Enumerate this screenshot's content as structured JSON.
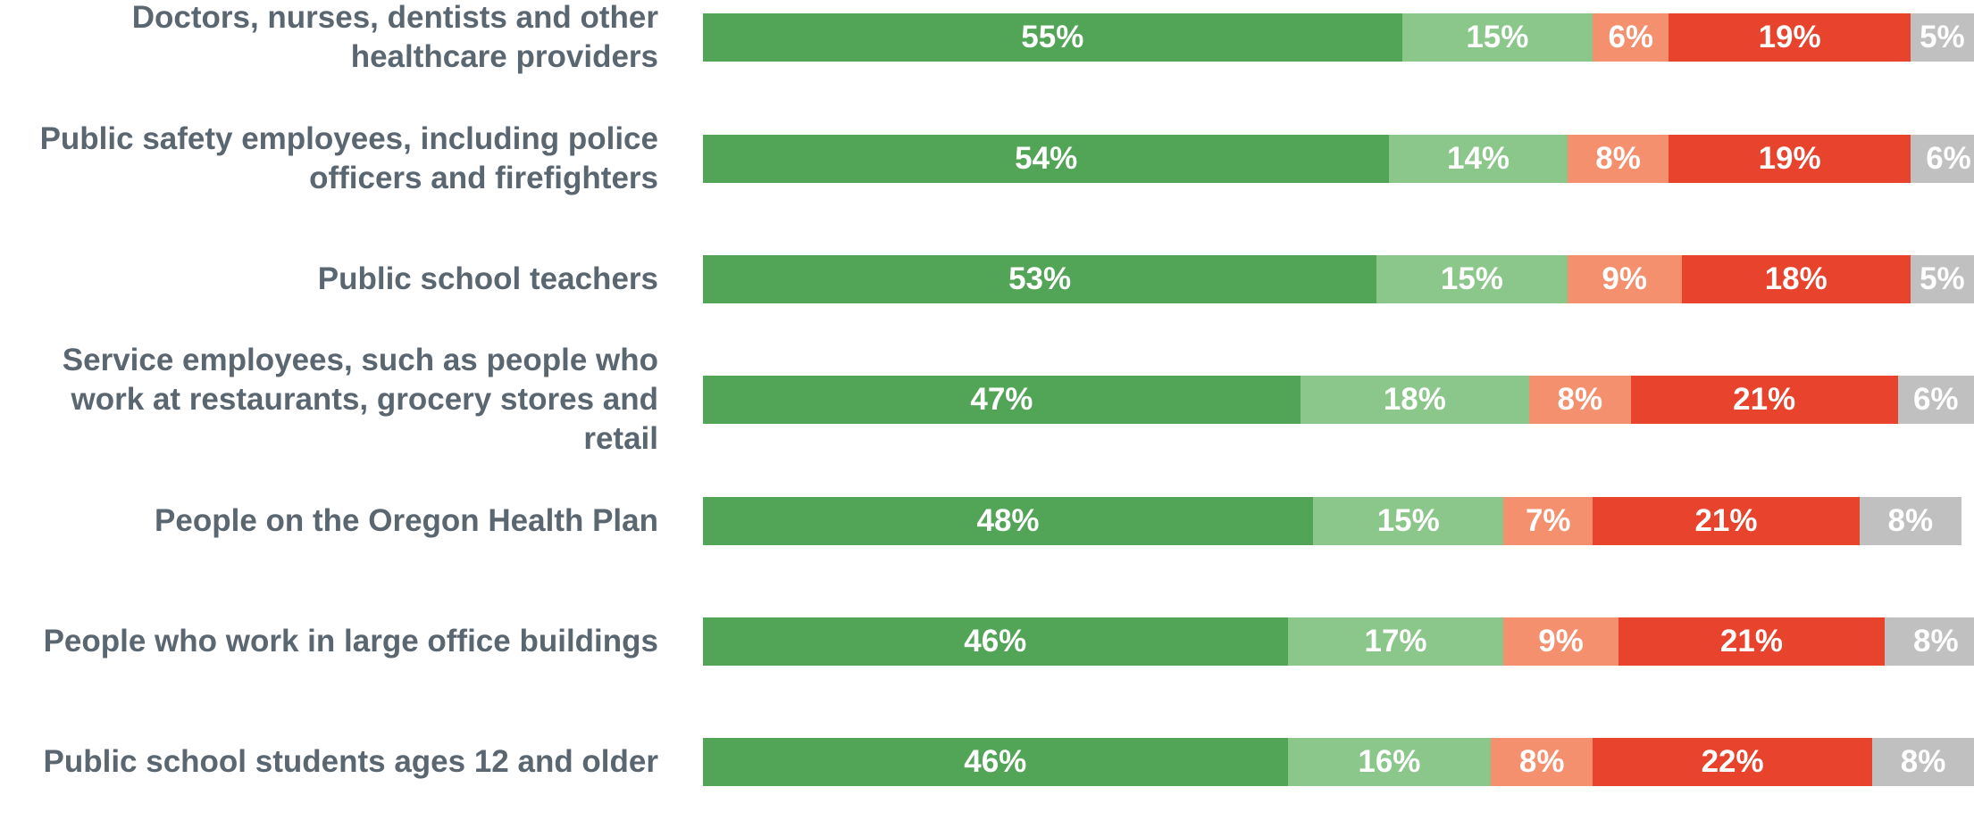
{
  "chart_data": {
    "type": "stacked-bar-horizontal",
    "categories": [
      "Doctors, nurses, dentists and other healthcare providers",
      "Public safety employees, including police officers and firefighters",
      "Public school teachers",
      "Service employees, such as people who work at restaurants, grocery stores and retail",
      "People on the Oregon Health Plan",
      "People who work in large office buildings",
      "Public school students ages 12 and older"
    ],
    "xlim": [
      0,
      100
    ],
    "series": [
      {
        "color": "#52a456",
        "values": [
          55,
          54,
          53,
          47,
          48,
          46,
          46
        ],
        "value_labels": [
          "55%",
          "54%",
          "53%",
          "47%",
          "48%",
          "46%",
          "46%"
        ]
      },
      {
        "color": "#8bc68a",
        "values": [
          15,
          14,
          15,
          18,
          15,
          17,
          16
        ],
        "value_labels": [
          "15%",
          "14%",
          "15%",
          "18%",
          "15%",
          "17%",
          "16%"
        ]
      },
      {
        "color": "#f5906e",
        "values": [
          6,
          8,
          9,
          8,
          7,
          9,
          8
        ],
        "value_labels": [
          "6%",
          "8%",
          "9%",
          "8%",
          "7%",
          "9%",
          "8%"
        ]
      },
      {
        "color": "#e8432c",
        "values": [
          19,
          19,
          18,
          21,
          21,
          21,
          22
        ],
        "value_labels": [
          "19%",
          "19%",
          "18%",
          "21%",
          "21%",
          "21%",
          "22%"
        ]
      },
      {
        "color": "#c0c0c0",
        "values": [
          5,
          6,
          5,
          6,
          8,
          8,
          8
        ],
        "value_labels": [
          "5%",
          "6%",
          "5%",
          "6%",
          "8%",
          "8%",
          "8%"
        ]
      }
    ]
  }
}
